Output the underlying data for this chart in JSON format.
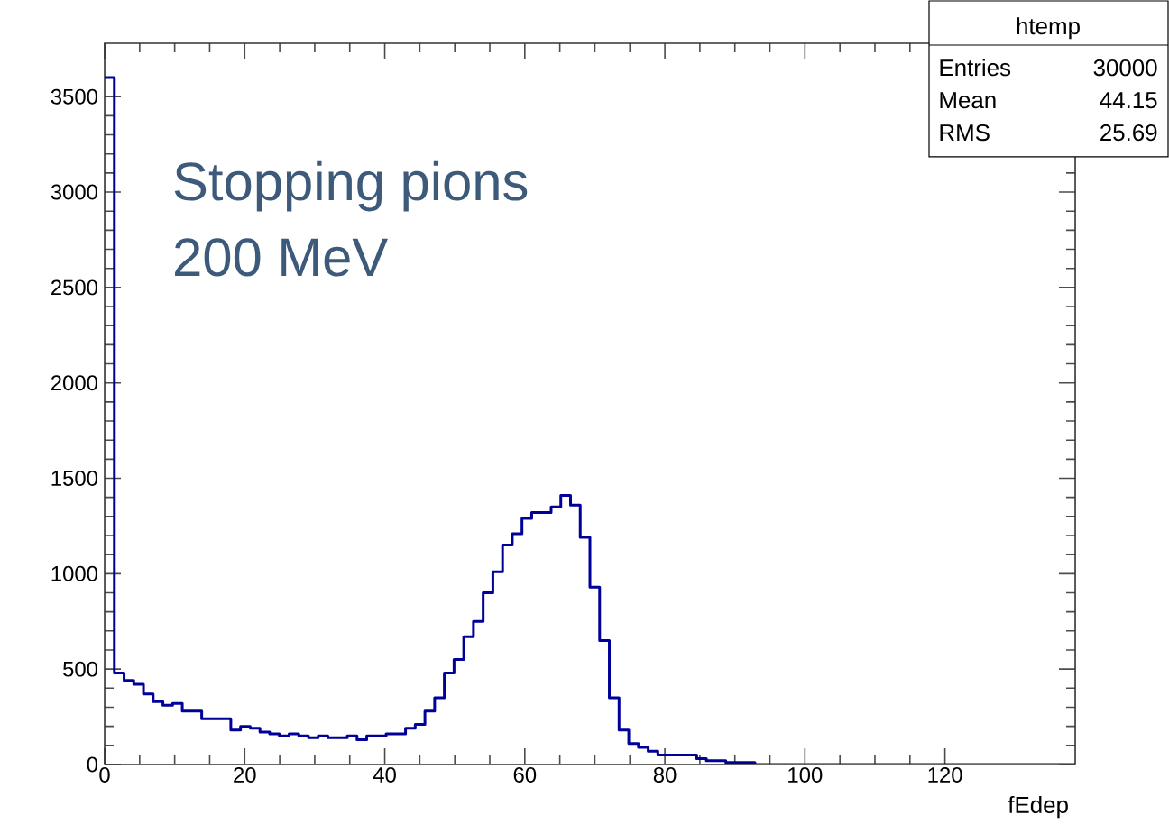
{
  "chart_data": {
    "type": "histogram",
    "xlabel": "fEdep",
    "annotations": [
      "Stopping pions",
      "200 MeV",
      "htemp",
      "Entries",
      "30000",
      "Mean",
      "44.15",
      "RMS",
      "25.69"
    ],
    "bins": [
      0,
      1.386,
      2.772,
      4.158,
      5.544,
      6.93,
      8.316,
      9.702,
      11.088,
      12.474,
      13.86,
      15.246,
      16.632,
      18.018,
      19.404,
      20.79,
      22.176,
      23.562,
      24.948,
      26.334,
      27.72,
      29.106,
      30.492,
      31.878,
      33.264,
      34.65,
      36.036,
      37.422,
      38.808,
      40.194,
      41.58,
      42.966,
      44.352,
      45.738,
      47.124,
      48.51,
      49.896,
      51.282,
      52.668,
      54.054,
      55.44,
      56.826,
      58.212,
      59.598,
      60.984,
      62.37,
      63.756,
      65.142,
      66.528,
      67.914,
      69.3,
      70.686,
      72.072,
      73.458,
      74.844,
      76.23,
      77.616,
      79.002,
      80.388,
      81.774,
      83.16,
      84.546,
      85.932,
      87.318,
      88.704,
      90.09,
      91.476,
      92.862,
      94.248,
      95.634,
      97.02,
      98.406,
      99.792,
      101.178,
      102.564,
      103.95,
      105.336,
      106.722,
      108.108,
      109.494,
      110.88,
      112.266,
      113.652,
      115.038,
      116.424,
      117.81,
      119.196,
      120.582,
      121.968,
      123.354,
      124.74,
      126.126,
      127.512,
      128.898,
      130.284,
      131.67,
      133.056,
      134.442,
      135.828,
      137.214,
      138.6
    ],
    "values": [
      3600,
      480,
      440,
      420,
      370,
      330,
      310,
      320,
      280,
      280,
      240,
      240,
      240,
      180,
      200,
      190,
      170,
      160,
      150,
      160,
      150,
      140,
      150,
      140,
      140,
      150,
      130,
      150,
      150,
      160,
      160,
      190,
      210,
      280,
      350,
      480,
      550,
      670,
      750,
      900,
      1010,
      1150,
      1210,
      1290,
      1320,
      1320,
      1350,
      1410,
      1360,
      1190,
      930,
      650,
      350,
      180,
      110,
      90,
      70,
      50,
      50,
      50,
      50,
      30,
      20,
      20,
      10,
      10,
      10,
      0,
      0,
      0,
      0,
      0,
      0,
      0,
      0,
      0,
      0,
      0,
      0,
      0,
      0,
      0,
      0,
      0,
      0,
      0,
      0,
      0,
      0,
      0,
      0,
      0,
      0,
      0,
      0,
      0,
      0,
      0,
      0,
      0
    ],
    "color": "#000099",
    "xlim": [
      0,
      138.6
    ],
    "ylim": [
      0,
      3780
    ],
    "xticks": [
      0,
      20,
      40,
      60,
      80,
      100,
      120
    ],
    "yticks": [
      0,
      500,
      1000,
      1500,
      2000,
      2500,
      3000,
      3500
    ],
    "grid": false
  }
}
